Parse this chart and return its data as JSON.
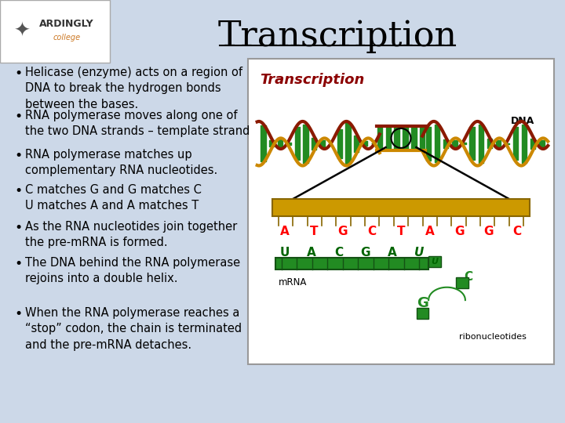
{
  "background_color": "#ccd8e8",
  "title": "Transcription",
  "title_fontsize": 32,
  "title_color": "#000000",
  "bullet_points": [
    "Helicase (enzyme) acts on a region of\nDNA to break the hydrogen bonds\nbetween the bases.",
    "RNA polymerase moves along one of\nthe two DNA strands – template strand",
    "RNA polymerase matches up\ncomplementary RNA nucleotides.",
    "C matches G and G matches C\nU matches A and A matches T",
    "As the RNA nucleotides join together\nthe pre-mRNA is formed.",
    "The DNA behind the RNA polymerase\nrejoins into a double helix.",
    "When the RNA polymerase reaches a\n“stop” codon, the chain is terminated\nand the pre-mRNA detaches."
  ],
  "bullet_fontsize": 10.5,
  "bullet_color": "#000000",
  "img_label": "Transcription",
  "img_label_color": "#8b0000",
  "dna_label": "DNA",
  "dna_bases": [
    "A",
    "T",
    "G",
    "C",
    "T",
    "A",
    "G",
    "G",
    "C"
  ],
  "mrna_bases": [
    "U",
    "A",
    "C",
    "G",
    "A",
    "U"
  ],
  "mrna_label": "mRNA",
  "ribo_label": "ribonucleotides"
}
